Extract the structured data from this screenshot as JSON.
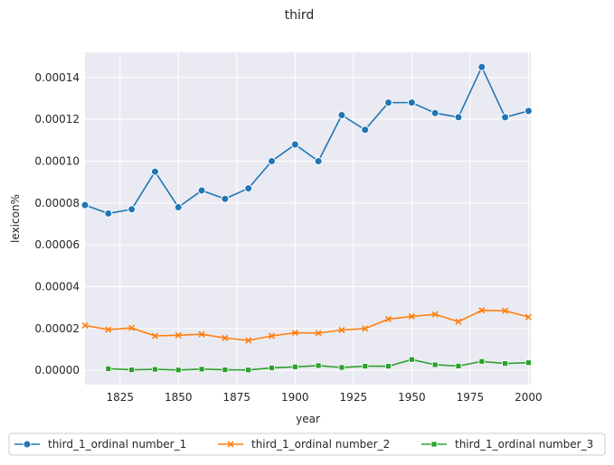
{
  "chart_data": {
    "type": "line",
    "title": "third",
    "xlabel": "year",
    "ylabel": "lexicon%",
    "xlim": [
      1810,
      2001
    ],
    "ylim": [
      -6.8e-06,
      0.000152
    ],
    "xticks": [
      1825,
      1850,
      1875,
      1900,
      1925,
      1950,
      1975,
      2000
    ],
    "xtick_labels": [
      "1825",
      "1850",
      "1875",
      "1900",
      "1925",
      "1950",
      "1975",
      "2000"
    ],
    "yticks": [
      0,
      2e-05,
      4e-05,
      6e-05,
      8e-05,
      0.0001,
      0.00012,
      0.00014
    ],
    "ytick_labels": [
      "0.00000",
      "0.00002",
      "0.00004",
      "0.00006",
      "0.00008",
      "0.00010",
      "0.00012",
      "0.00014"
    ],
    "grid": true,
    "legend_position": "bottom",
    "series": [
      {
        "name": "third_1_ordinal number_1",
        "color": "#1f77b4",
        "marker": "circle",
        "x": [
          1810,
          1820,
          1830,
          1840,
          1850,
          1860,
          1870,
          1880,
          1890,
          1900,
          1910,
          1920,
          1930,
          1940,
          1950,
          1960,
          1970,
          1980,
          1990,
          2000
        ],
        "y": [
          7.9e-05,
          7.5e-05,
          7.7e-05,
          9.5e-05,
          7.8e-05,
          8.6e-05,
          8.2e-05,
          8.7e-05,
          0.0001,
          0.000108,
          0.0001,
          0.000122,
          0.000115,
          0.000128,
          0.000128,
          0.000123,
          0.000121,
          0.000145,
          0.000121,
          0.000124
        ]
      },
      {
        "name": "third_1_ordinal number_2",
        "color": "#ff7f0e",
        "marker": "x",
        "x": [
          1810,
          1820,
          1830,
          1840,
          1850,
          1860,
          1870,
          1880,
          1890,
          1900,
          1910,
          1920,
          1930,
          1940,
          1950,
          1960,
          1970,
          1980,
          1990,
          2000
        ],
        "y": [
          2.15e-05,
          1.95e-05,
          2.03e-05,
          1.65e-05,
          1.68e-05,
          1.73e-05,
          1.55e-05,
          1.43e-05,
          1.65e-05,
          1.8e-05,
          1.78e-05,
          1.93e-05,
          2e-05,
          2.45e-05,
          2.58e-05,
          2.68e-05,
          2.33e-05,
          2.87e-05,
          2.85e-05,
          2.55e-05
        ]
      },
      {
        "name": "third_1_ordinal number_3",
        "color": "#2ca02c",
        "marker": "square",
        "x": [
          1820,
          1830,
          1840,
          1850,
          1860,
          1870,
          1880,
          1890,
          1900,
          1910,
          1920,
          1930,
          1940,
          1950,
          1960,
          1970,
          1980,
          1990,
          2000
        ],
        "y": [
          8e-07,
          3e-07,
          5e-07,
          2e-07,
          6e-07,
          3e-07,
          2e-07,
          1.2e-06,
          1.7e-06,
          2.3e-06,
          1.4e-06,
          2e-06,
          2e-06,
          5.2e-06,
          2.7e-06,
          2.1e-06,
          4.3e-06,
          3.3e-06,
          3.7e-06
        ]
      }
    ]
  }
}
